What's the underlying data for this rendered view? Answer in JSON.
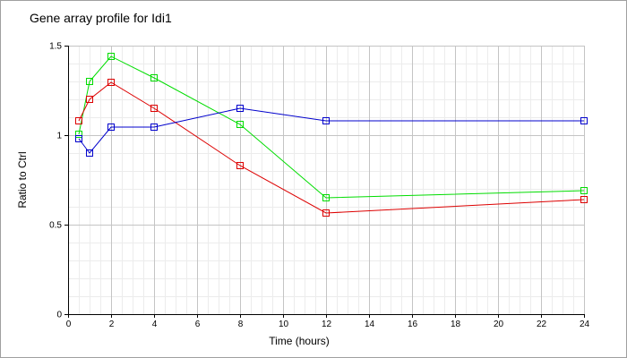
{
  "chart_data": {
    "type": "line",
    "title": "Gene array profile for Idi1",
    "xlabel": "Time (hours)",
    "ylabel": "Ratio to Ctrl",
    "xlim": [
      0,
      24
    ],
    "ylim": [
      0,
      1.5
    ],
    "xticks": [
      "0",
      "2",
      "4",
      "6",
      "8",
      "10",
      "12",
      "14",
      "16",
      "18",
      "20",
      "22",
      "24"
    ],
    "yticks": [
      "0",
      "0.5",
      "1",
      "1.5"
    ],
    "grid": true,
    "x": [
      0.5,
      1,
      2,
      4,
      8,
      12,
      24
    ],
    "series": [
      {
        "color": "#00dd00",
        "values": [
          1.005,
          1.3,
          1.44,
          1.32,
          1.06,
          0.65,
          0.69
        ]
      },
      {
        "color": "#dd0000",
        "values": [
          1.08,
          1.2,
          1.295,
          1.15,
          0.83,
          0.565,
          0.64
        ]
      },
      {
        "color": "#0000cc",
        "values": [
          0.98,
          0.9,
          1.045,
          1.045,
          1.15,
          1.08,
          1.08
        ]
      }
    ]
  }
}
